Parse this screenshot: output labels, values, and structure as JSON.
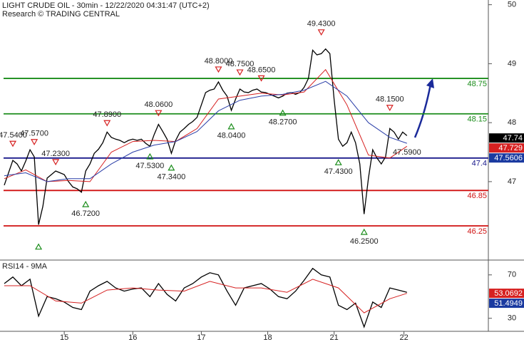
{
  "chart_data": [
    {
      "type": "line",
      "title": "LIGHT CRUDE OIL - 30min - 12/22/2020 04:31:47 (UTC+2)",
      "subtitle": "Research © TRADING CENTRAL",
      "xlim": [
        -1,
        113
      ],
      "ylim": [
        45.67,
        50.08
      ],
      "yticks": [
        47,
        48,
        49,
        50
      ],
      "series": [
        {
          "color": "#000000",
          "x": [
            0,
            1,
            2,
            3,
            4,
            5,
            6,
            7,
            8,
            9,
            10,
            11,
            12,
            13,
            14,
            15,
            16,
            17,
            18,
            19,
            20,
            21,
            22,
            23,
            24,
            25,
            26,
            27,
            28,
            29,
            30,
            31,
            32,
            33,
            34,
            35,
            36,
            37,
            38,
            39,
            40,
            41,
            42,
            43,
            44,
            45,
            46,
            47,
            48,
            49,
            50,
            51,
            52,
            53,
            54,
            55,
            56,
            57,
            58,
            59,
            60,
            61,
            62,
            63,
            64,
            65,
            66,
            67,
            68,
            69,
            70,
            71,
            72,
            73,
            74,
            75,
            76,
            77,
            78,
            79,
            80,
            81,
            82,
            83,
            84,
            85,
            86,
            87,
            88,
            89,
            90,
            91,
            92,
            93,
            94
          ],
          "values": [
            46.94,
            47.15,
            47.36,
            47.3,
            47.18,
            47.35,
            47.54,
            47.42,
            46.27,
            46.58,
            47.06,
            47.12,
            47.18,
            47.15,
            47.12,
            47.0,
            46.91,
            46.88,
            46.82,
            47.18,
            47.3,
            47.48,
            47.55,
            47.66,
            47.84,
            47.75,
            47.72,
            47.7,
            47.66,
            47.7,
            47.72,
            47.7,
            47.72,
            47.65,
            47.6,
            47.8,
            47.97,
            47.85,
            47.72,
            47.48,
            47.7,
            47.84,
            47.9,
            47.97,
            48.02,
            48.09,
            48.3,
            48.51,
            48.55,
            48.57,
            48.69,
            48.55,
            48.45,
            48.21,
            48.4,
            48.57,
            48.52,
            48.51,
            48.55,
            48.57,
            48.52,
            48.51,
            48.48,
            48.45,
            48.42,
            48.45,
            48.5,
            48.51,
            48.48,
            48.51,
            48.6,
            48.75,
            49.23,
            49.15,
            49.17,
            49.25,
            49.17,
            48.39,
            47.72,
            47.6,
            47.66,
            47.84,
            47.66,
            47.3,
            46.45,
            47.06,
            47.54,
            47.4,
            47.3,
            47.42,
            47.9,
            47.84,
            47.72,
            47.84,
            47.78
          ]
        },
        {
          "color": "#d62020",
          "x": [
            0,
            5,
            10,
            15,
            20,
            25,
            30,
            35,
            40,
            45,
            50,
            55,
            60,
            65,
            70,
            75,
            80,
            85,
            90,
            94
          ],
          "values": [
            47.05,
            47.2,
            47.0,
            47.02,
            47.0,
            47.5,
            47.68,
            47.7,
            47.68,
            47.9,
            48.4,
            48.45,
            48.5,
            48.47,
            48.52,
            48.9,
            48.3,
            47.45,
            47.4,
            47.6
          ]
        },
        {
          "color": "#2b3fa8",
          "x": [
            0,
            5,
            10,
            15,
            20,
            25,
            30,
            35,
            40,
            45,
            50,
            55,
            60,
            65,
            70,
            75,
            80,
            85,
            90,
            94
          ],
          "values": [
            47.1,
            47.15,
            47.0,
            47.05,
            47.05,
            47.3,
            47.5,
            47.62,
            47.68,
            47.85,
            48.2,
            48.38,
            48.45,
            48.48,
            48.55,
            48.7,
            48.45,
            48.0,
            47.75,
            47.65
          ]
        }
      ],
      "levels": [
        {
          "value": 48.75,
          "color": "#1a8c1a"
        },
        {
          "value": 48.15,
          "color": "#1a8c1a"
        },
        {
          "value": 47.4,
          "color": "#1a1a8c"
        },
        {
          "value": 46.85,
          "color": "#d01010"
        },
        {
          "value": 46.25,
          "color": "#d01010"
        }
      ],
      "annotations": [
        {
          "value": 47.54,
          "label": "47.5400",
          "x": 2,
          "dir": "down"
        },
        {
          "value": 47.57,
          "label": "47.5700",
          "x": 7,
          "dir": "down"
        },
        {
          "value": 47.23,
          "label": "47.2300",
          "x": 12,
          "dir": "down"
        },
        {
          "value": 46.0,
          "x": 8,
          "dir": "up"
        },
        {
          "value": 46.72,
          "label": "46.7200",
          "x": 19,
          "dir": "up"
        },
        {
          "value": 47.89,
          "label": "47.8900",
          "x": 24,
          "dir": "down"
        },
        {
          "value": 47.53,
          "label": "47.5300",
          "x": 34,
          "dir": "up"
        },
        {
          "value": 48.06,
          "label": "48.0600",
          "x": 36,
          "dir": "down"
        },
        {
          "value": 47.34,
          "label": "47.3400",
          "x": 39,
          "dir": "up"
        },
        {
          "value": 48.8,
          "label": "48.8000",
          "x": 50,
          "dir": "down"
        },
        {
          "value": 48.04,
          "label": "48.0400",
          "x": 53,
          "dir": "up"
        },
        {
          "value": 48.75,
          "label": "48.7500",
          "x": 55,
          "dir": "down"
        },
        {
          "value": 48.65,
          "label": "48.6500",
          "x": 60,
          "dir": "down"
        },
        {
          "value": 48.27,
          "label": "48.2700",
          "x": 65,
          "dir": "up"
        },
        {
          "value": 49.43,
          "label": "49.4300",
          "x": 74,
          "dir": "down"
        },
        {
          "value": 47.43,
          "label": "47.4300",
          "x": 78,
          "dir": "up"
        },
        {
          "value": 46.25,
          "label": "46.2500",
          "x": 84,
          "dir": "up"
        },
        {
          "value": 48.15,
          "label": "48.1500",
          "x": 90,
          "dir": "down"
        },
        {
          "value": 47.59,
          "label": "47.5900",
          "x": 94
        }
      ],
      "price_tags": [
        {
          "value": 47.74,
          "label": "47.74",
          "color": "#000000"
        },
        {
          "value": 47.729,
          "label": "47.729",
          "color": "#d62020"
        },
        {
          "value": 47.5606,
          "label": "47.5606",
          "color": "#1a3aa0"
        }
      ]
    },
    {
      "type": "line",
      "title": "RSI14 - 9MA",
      "xlim": [
        -1,
        113
      ],
      "ylim": [
        18,
        83
      ],
      "yticks": [
        30,
        70
      ],
      "xticks": [
        {
          "value": 14,
          "label": "15"
        },
        {
          "value": 30,
          "label": "16"
        },
        {
          "value": 46,
          "label": "17"
        },
        {
          "value": 61.5,
          "label": "18"
        },
        {
          "value": 77,
          "label": "21"
        },
        {
          "value": 93.3,
          "label": "22"
        }
      ],
      "series": [
        {
          "color": "#000000",
          "x": [
            0,
            2,
            4,
            6,
            8,
            10,
            12,
            14,
            16,
            18,
            20,
            22,
            24,
            26,
            28,
            30,
            32,
            34,
            36,
            38,
            40,
            42,
            44,
            46,
            48,
            50,
            52,
            54,
            56,
            58,
            60,
            62,
            64,
            66,
            68,
            70,
            72,
            74,
            76,
            78,
            80,
            82,
            84,
            86,
            88,
            90,
            92,
            94
          ],
          "values": [
            62,
            68,
            60,
            66,
            32,
            50,
            48,
            45,
            40,
            38,
            55,
            60,
            64,
            58,
            55,
            57,
            58,
            50,
            62,
            52,
            46,
            58,
            62,
            68,
            72,
            70,
            55,
            42,
            58,
            60,
            62,
            57,
            50,
            48,
            55,
            65,
            76,
            70,
            68,
            42,
            38,
            44,
            22,
            45,
            40,
            58,
            56,
            54
          ]
        },
        {
          "color": "#d62020",
          "x": [
            0,
            6,
            12,
            18,
            24,
            30,
            36,
            42,
            48,
            54,
            60,
            66,
            72,
            78,
            84,
            90,
            94
          ],
          "values": [
            60,
            60,
            46,
            44,
            56,
            58,
            56,
            55,
            64,
            58,
            58,
            54,
            66,
            58,
            35,
            48,
            53
          ]
        }
      ],
      "price_tags": [
        {
          "value": 53.0692,
          "label": "53.0692",
          "color": "#d62020"
        },
        {
          "value": 51.4949,
          "label": "51.4949",
          "color": "#1a3aa0"
        }
      ]
    }
  ]
}
